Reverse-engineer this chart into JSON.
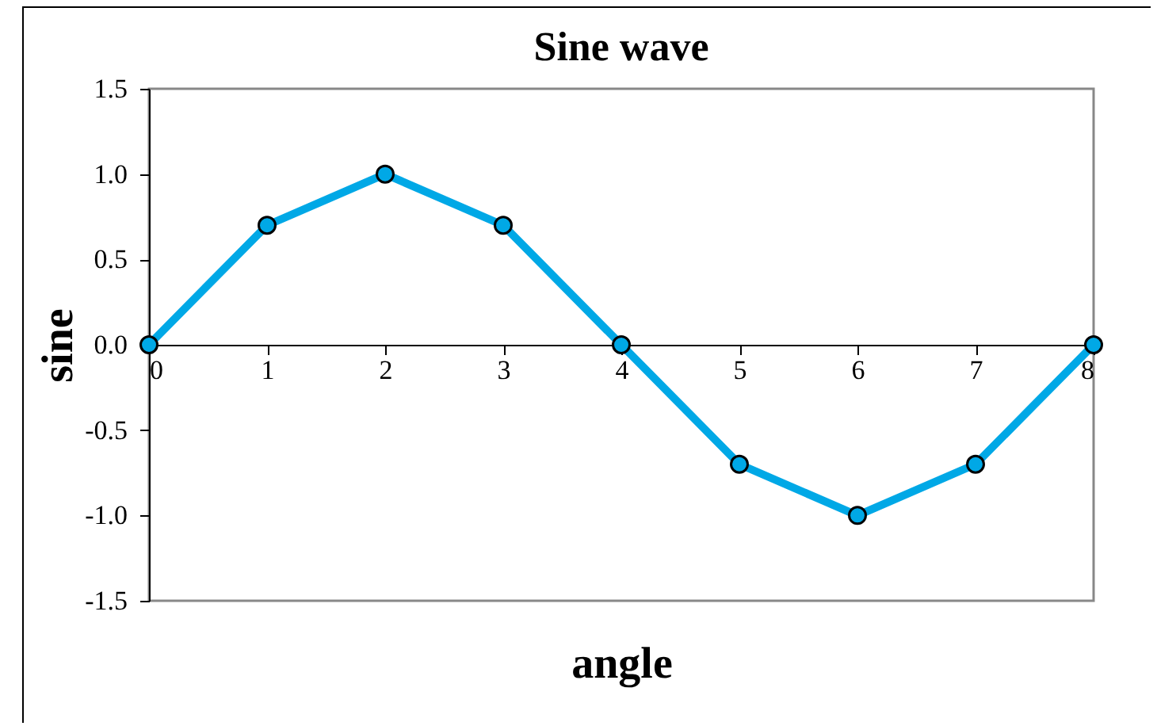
{
  "chart_data": {
    "type": "line",
    "title": "Sine wave",
    "xlabel": "angle",
    "ylabel": "sine",
    "x": [
      0,
      1,
      2,
      3,
      4,
      5,
      6,
      7,
      8
    ],
    "series": [
      {
        "color": "#00a8e6",
        "values": [
          0,
          0.7,
          1.0,
          0.7,
          0,
          -0.7,
          -1.0,
          -0.7,
          0
        ]
      }
    ],
    "xlim": [
      0,
      8
    ],
    "xticks": [
      0,
      1,
      2,
      3,
      4,
      5,
      6,
      7,
      8
    ],
    "ylim": [
      -1.5,
      1.5
    ],
    "yticks": [
      {
        "value": -1.5,
        "label": "-1.5"
      },
      {
        "value": -1,
        "label": "-1.0"
      },
      {
        "value": -0.5,
        "label": "-0.5"
      },
      {
        "value": 0,
        "label": "0.0"
      },
      {
        "value": 0.5,
        "label": "0.5"
      },
      {
        "value": 1,
        "label": "1.0"
      },
      {
        "value": 1.5,
        "label": "1.5"
      }
    ],
    "marker": "circle",
    "grid": false
  }
}
